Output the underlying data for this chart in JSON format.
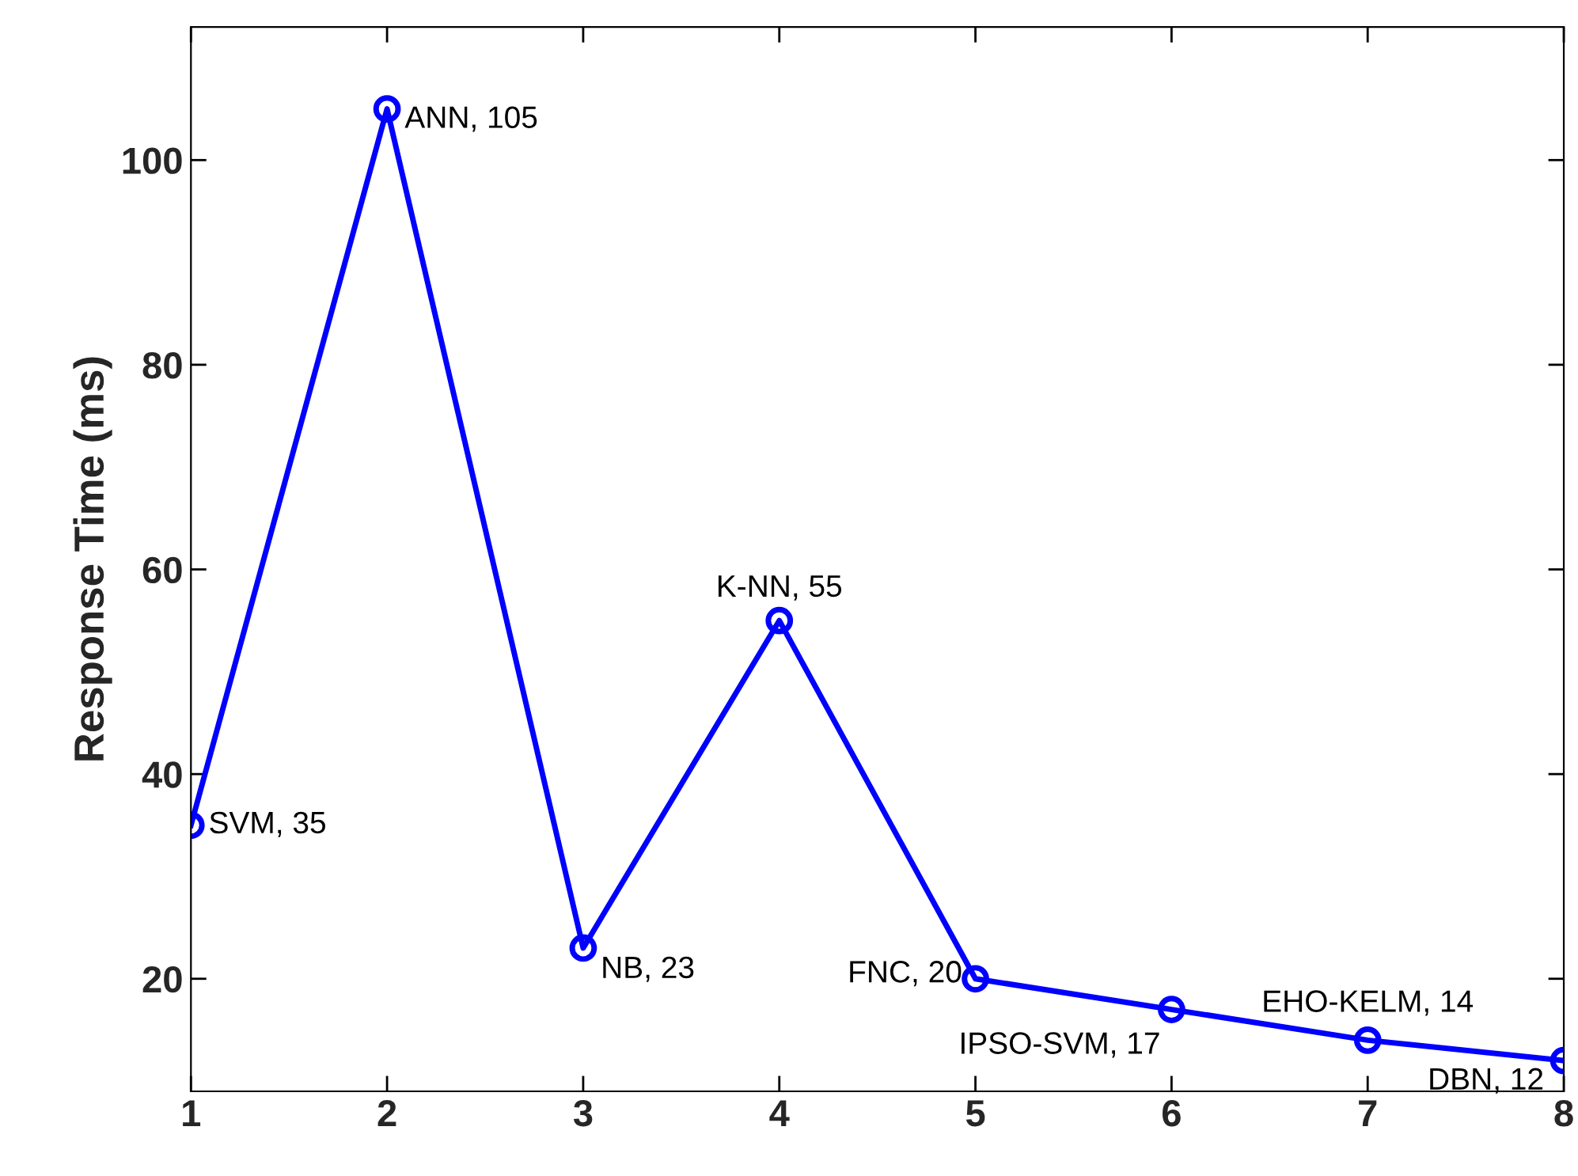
{
  "chart_data": {
    "type": "line",
    "ylabel": "Response Time (ms)",
    "x": [
      1,
      2,
      3,
      4,
      5,
      6,
      7,
      8
    ],
    "series": [
      {
        "color": "#0000ff",
        "values": [
          35,
          105,
          23,
          55,
          20,
          17,
          14,
          12
        ]
      }
    ],
    "xlim": [
      1,
      8
    ],
    "xticks": [
      1,
      2,
      3,
      4,
      5,
      6,
      7,
      8
    ],
    "ylim": [
      9,
      113
    ],
    "yticks": [
      20,
      40,
      60,
      80,
      100
    ],
    "marker": "circle",
    "line_style": "solid",
    "grid": false,
    "legend": false,
    "annotations": [
      {
        "text": "SVM, 35",
        "x": 1,
        "y": 35
      },
      {
        "text": "ANN, 105",
        "x": 2,
        "y": 105
      },
      {
        "text": "NB, 23",
        "x": 3,
        "y": 23
      },
      {
        "text": "K-NN, 55",
        "x": 4,
        "y": 55
      },
      {
        "text": "FNC, 20",
        "x": 5,
        "y": 20
      },
      {
        "text": "IPSO-SVM, 17",
        "x": 6,
        "y": 17
      },
      {
        "text": "EHO-KELM, 14",
        "x": 7,
        "y": 14
      },
      {
        "text": "DBN, 12",
        "x": 8,
        "y": 12
      }
    ]
  }
}
